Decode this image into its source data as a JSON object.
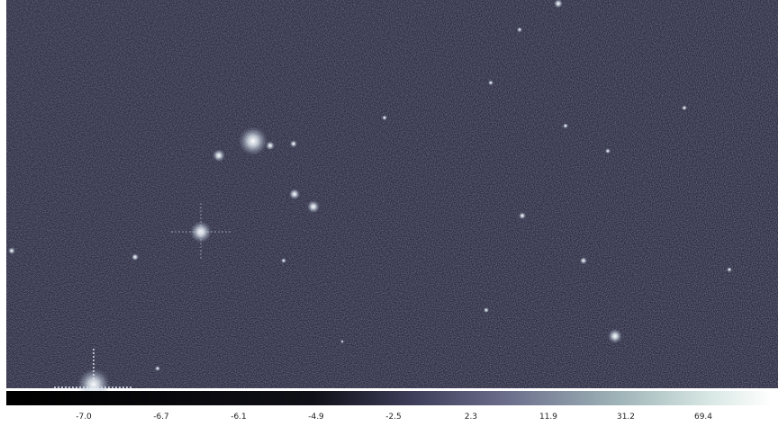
{
  "colorbar": {
    "ticks": [
      "-7.0",
      "-6.7",
      "-6.1",
      "-4.9",
      "-2.5",
      "2.3",
      "11.9",
      "31.2",
      "69.4"
    ]
  }
}
